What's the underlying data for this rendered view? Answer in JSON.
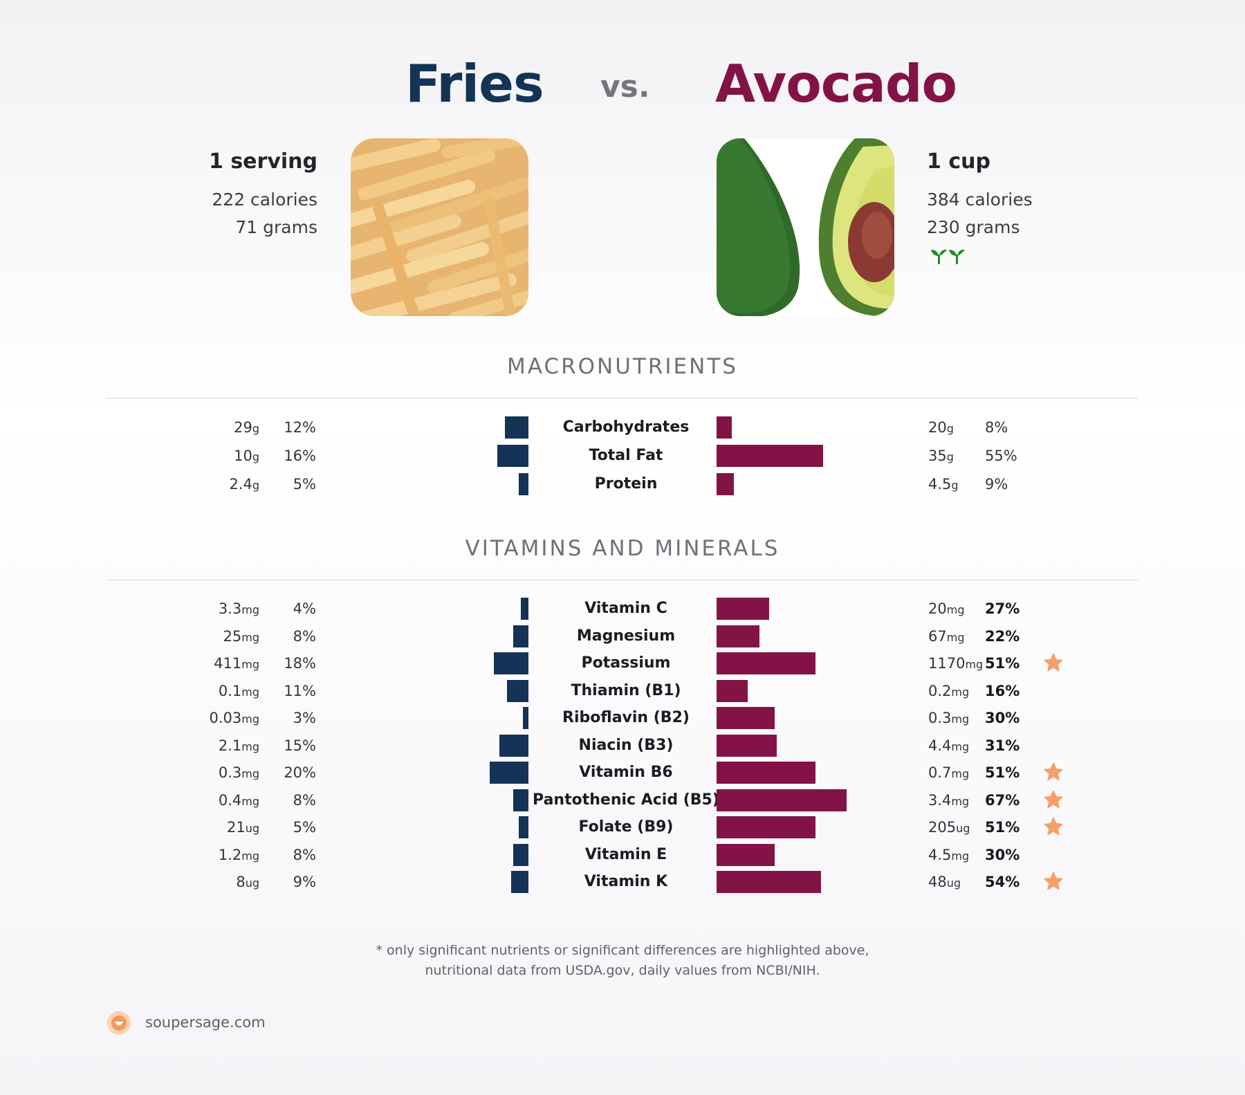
{
  "header": {
    "left_title": "Fries",
    "vs": "vs.",
    "right_title": "Avocado"
  },
  "left_food": {
    "serving": "1 serving",
    "calories": "222 calories",
    "grams": "71 grams",
    "image": "french-fries-photo"
  },
  "right_food": {
    "serving": "1 cup",
    "calories": "384 calories",
    "grams": "230 grams",
    "image": "avocado-photo",
    "badge": "vegan-sprouts-icon"
  },
  "sections": {
    "macros": "MACRONUTRIENTS",
    "vitamins": "VITAMINS AND MINERALS"
  },
  "colors": {
    "left": "#143357",
    "right": "#831346",
    "star": "#f5a06a"
  },
  "chart_data": [
    {
      "type": "bar",
      "title": "MACRONUTRIENTS",
      "orientation": "diverging-horizontal",
      "categories": [
        "Carbohydrates",
        "Total Fat",
        "Protein"
      ],
      "series": [
        {
          "name": "Fries",
          "amounts": [
            "29",
            "10",
            "2.4"
          ],
          "units": [
            "g",
            "g",
            "g"
          ],
          "values": [
            12,
            16,
            5
          ]
        },
        {
          "name": "Avocado",
          "amounts": [
            "20",
            "35",
            "4.5"
          ],
          "units": [
            "g",
            "g",
            "g"
          ],
          "values": [
            8,
            55,
            9
          ]
        }
      ],
      "value_unit": "% daily value",
      "highlight_right": [
        false,
        false,
        false
      ],
      "stars_right": [
        false,
        false,
        false
      ]
    },
    {
      "type": "bar",
      "title": "VITAMINS AND MINERALS",
      "orientation": "diverging-horizontal",
      "categories": [
        "Vitamin C",
        "Magnesium",
        "Potassium",
        "Thiamin (B1)",
        "Riboflavin (B2)",
        "Niacin (B3)",
        "Vitamin B6",
        "Pantothenic Acid (B5)",
        "Folate (B9)",
        "Vitamin E",
        "Vitamin K"
      ],
      "series": [
        {
          "name": "Fries",
          "amounts": [
            "3.3",
            "25",
            "411",
            "0.1",
            "0.03",
            "2.1",
            "0.3",
            "0.4",
            "21",
            "1.2",
            "8"
          ],
          "units": [
            "mg",
            "mg",
            "mg",
            "mg",
            "mg",
            "mg",
            "mg",
            "mg",
            "ug",
            "mg",
            "ug"
          ],
          "values": [
            4,
            8,
            18,
            11,
            3,
            15,
            20,
            8,
            5,
            8,
            9
          ]
        },
        {
          "name": "Avocado",
          "amounts": [
            "20",
            "67",
            "1170",
            "0.2",
            "0.3",
            "4.4",
            "0.7",
            "3.4",
            "205",
            "4.5",
            "48"
          ],
          "units": [
            "mg",
            "mg",
            "mg",
            "mg",
            "mg",
            "mg",
            "mg",
            "mg",
            "ug",
            "mg",
            "ug"
          ],
          "values": [
            27,
            22,
            51,
            16,
            30,
            31,
            51,
            67,
            51,
            30,
            54
          ]
        }
      ],
      "value_unit": "% daily value",
      "highlight_right": [
        true,
        true,
        true,
        true,
        true,
        true,
        true,
        true,
        true,
        true,
        true
      ],
      "stars_right": [
        false,
        false,
        true,
        false,
        false,
        false,
        true,
        true,
        true,
        false,
        true
      ]
    }
  ],
  "footnote": {
    "line1": "* only significant nutrients or significant differences are highlighted above,",
    "line2": "nutritional data from USDA.gov, daily values from NCBI/NIH."
  },
  "brand": {
    "name": "soupersage.com",
    "logo": "soupersage-logo-icon"
  }
}
